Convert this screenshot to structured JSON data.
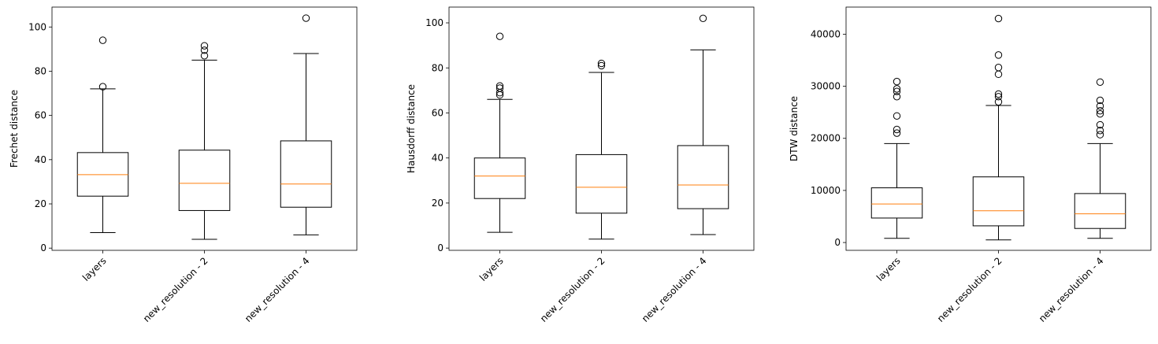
{
  "chart_data": [
    {
      "type": "box",
      "ylabel": "Frechet distance",
      "categories": [
        "layers",
        "new_resolution - 2",
        "new_resolution - 4"
      ],
      "ylim": [
        -1,
        109
      ],
      "yticks": [
        0,
        20,
        40,
        60,
        80,
        100
      ],
      "boxes": [
        {
          "category": "layers",
          "whisker_low": 7,
          "q1": 23.5,
          "median": 33.2,
          "q3": 43.2,
          "whisker_high": 72,
          "fliers": [
            73,
            94
          ]
        },
        {
          "category": "new_resolution - 2",
          "whisker_low": 4,
          "q1": 17,
          "median": 29.3,
          "q3": 44.3,
          "whisker_high": 85,
          "fliers": [
            87,
            89.5,
            91.5
          ]
        },
        {
          "category": "new_resolution - 4",
          "whisker_low": 6,
          "q1": 18.5,
          "median": 29,
          "q3": 48.5,
          "whisker_high": 88,
          "fliers": [
            104
          ]
        }
      ]
    },
    {
      "type": "box",
      "ylabel": "Hausdorff distance",
      "categories": [
        "layers",
        "new_resolution - 2",
        "new_resolution - 4"
      ],
      "ylim": [
        -1,
        107
      ],
      "yticks": [
        0,
        20,
        40,
        60,
        80,
        100
      ],
      "boxes": [
        {
          "category": "layers",
          "whisker_low": 7,
          "q1": 22,
          "median": 32,
          "q3": 40,
          "whisker_high": 66,
          "fliers": [
            68,
            69,
            71,
            72,
            94
          ]
        },
        {
          "category": "new_resolution - 2",
          "whisker_low": 4,
          "q1": 15.5,
          "median": 27,
          "q3": 41.5,
          "whisker_high": 78,
          "fliers": [
            81,
            82
          ]
        },
        {
          "category": "new_resolution - 4",
          "whisker_low": 6,
          "q1": 17.5,
          "median": 28,
          "q3": 45.5,
          "whisker_high": 88,
          "fliers": [
            102
          ]
        }
      ]
    },
    {
      "type": "box",
      "ylabel": "DTW distance",
      "categories": [
        "layers",
        "new_resolution - 2",
        "new_resolution - 4"
      ],
      "ylim": [
        -1500,
        45200
      ],
      "yticks": [
        0,
        10000,
        20000,
        30000,
        40000
      ],
      "boxes": [
        {
          "category": "layers",
          "whisker_low": 800,
          "q1": 4700,
          "median": 7400,
          "q3": 10500,
          "whisker_high": 19000,
          "fliers": [
            21000,
            21700,
            24300,
            28000,
            29000,
            29500,
            30900
          ]
        },
        {
          "category": "new_resolution - 2",
          "whisker_low": 500,
          "q1": 3200,
          "median": 6100,
          "q3": 12600,
          "whisker_high": 26300,
          "fliers": [
            27000,
            28000,
            28500,
            32300,
            33600,
            36000,
            43000
          ]
        },
        {
          "category": "new_resolution - 4",
          "whisker_low": 800,
          "q1": 2700,
          "median": 5500,
          "q3": 9400,
          "whisker_high": 19000,
          "fliers": [
            20700,
            21500,
            22600,
            24700,
            25300,
            26200,
            27300,
            30800
          ]
        }
      ]
    }
  ],
  "colors": {
    "box": "#000000",
    "median": "#ff7f0e",
    "flier": "#000000"
  }
}
